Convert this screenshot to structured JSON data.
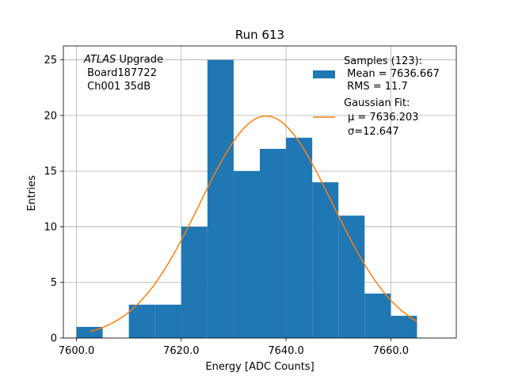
{
  "chart_data": {
    "type": "bar",
    "title": "Run 613",
    "xlabel": "Energy [ADC Counts]",
    "ylabel": "Entries",
    "xlim": [
      7597.5,
      7672.5
    ],
    "ylim": [
      0,
      26.25
    ],
    "grid": true,
    "x_ticks": [
      7600.0,
      7620.0,
      7640.0,
      7660.0
    ],
    "x_tick_labels": [
      "7600.0",
      "7620.0",
      "7640.0",
      "7660.0"
    ],
    "y_ticks": [
      0,
      5,
      10,
      15,
      20,
      25
    ],
    "y_tick_labels": [
      "0",
      "5",
      "10",
      "15",
      "20",
      "25"
    ],
    "bin_edges": [
      7600,
      7605,
      7610,
      7615,
      7620,
      7625,
      7630,
      7635,
      7640,
      7645,
      7650,
      7655,
      7660,
      7665
    ],
    "counts": [
      1,
      0,
      3,
      3,
      10,
      25,
      15,
      17,
      18,
      14,
      11,
      4,
      2
    ],
    "bar_color": "#1f77b4",
    "fit": {
      "name": "Gaussian Fit",
      "mean": 7636.203,
      "sigma": 12.647,
      "amplitude": 19.95,
      "x_range": [
        7602.5,
        7665
      ],
      "color": "#ff7f0e"
    },
    "annotation": {
      "line1_italic": "ATLAS",
      "line1_rest": " Upgrade",
      "line2": " Board187722",
      "line3": " Ch001 35dB"
    },
    "legend": {
      "position": "top-right",
      "samples_title": "Samples (123):",
      "samples_mean": " Mean = 7636.667",
      "samples_rms": " RMS = 11.7",
      "fit_title": "Gaussian Fit:",
      "fit_mu": "μ = 7636.203",
      "fit_sigma": "σ=12.647"
    }
  }
}
